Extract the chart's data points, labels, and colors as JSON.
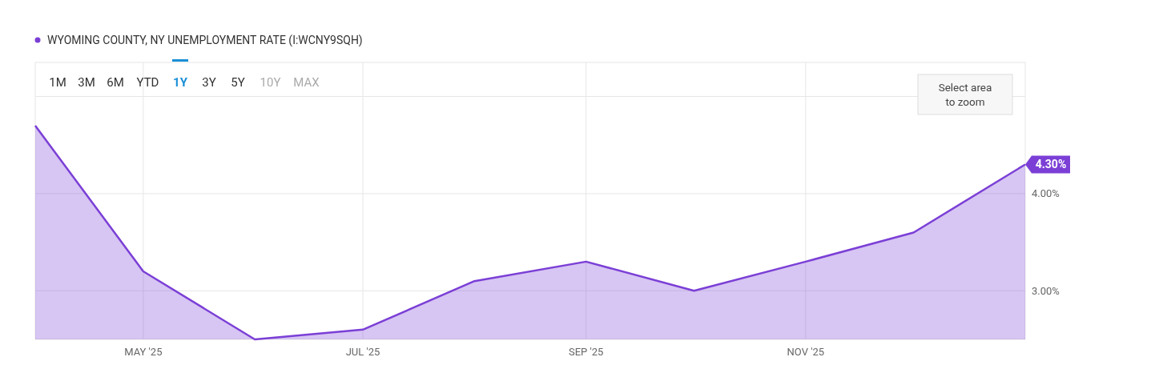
{
  "chart_data": {
    "type": "area",
    "legend": "top left",
    "grid": true,
    "x": [
      "2025-04-01",
      "2025-05-01",
      "2025-06-01",
      "2025-07-01",
      "2025-08-01",
      "2025-09-01",
      "2025-10-01",
      "2025-11-01",
      "2025-12-01",
      "2026-01-01"
    ],
    "series": [
      {
        "name": "WYOMING COUNTY, NY UNEMPLOYMENT RATE (I:WCNY9SQH)",
        "color": "#7b3fd6",
        "values": [
          4.7,
          3.2,
          2.5,
          2.6,
          3.1,
          3.3,
          3.0,
          3.3,
          3.6,
          4.3
        ]
      }
    ],
    "xlim": [
      "2025-04-01",
      "2026-01-01"
    ],
    "xticks": [
      {
        "value": "2025-05-01",
        "label": "MAY '25"
      },
      {
        "value": "2025-07-01",
        "label": "JUL '25"
      },
      {
        "value": "2025-09-01",
        "label": "SEP '25"
      },
      {
        "value": "2025-11-01",
        "label": "NOV '25"
      }
    ],
    "ylim": [
      2.5,
      5.35
    ],
    "yticks": [
      {
        "value": 3,
        "label": "3.00%"
      },
      {
        "value": 4,
        "label": "4.00%"
      },
      {
        "value": 5,
        "label": null
      }
    ],
    "annotations": [
      "1M",
      "3M",
      "6M",
      "YTD",
      "1Y",
      "3Y",
      "5Y",
      "10Y",
      "MAX",
      "Select area to zoom",
      {
        "text": "4.30%",
        "x": "2026-01-01",
        "y": 4.3
      }
    ]
  }
}
